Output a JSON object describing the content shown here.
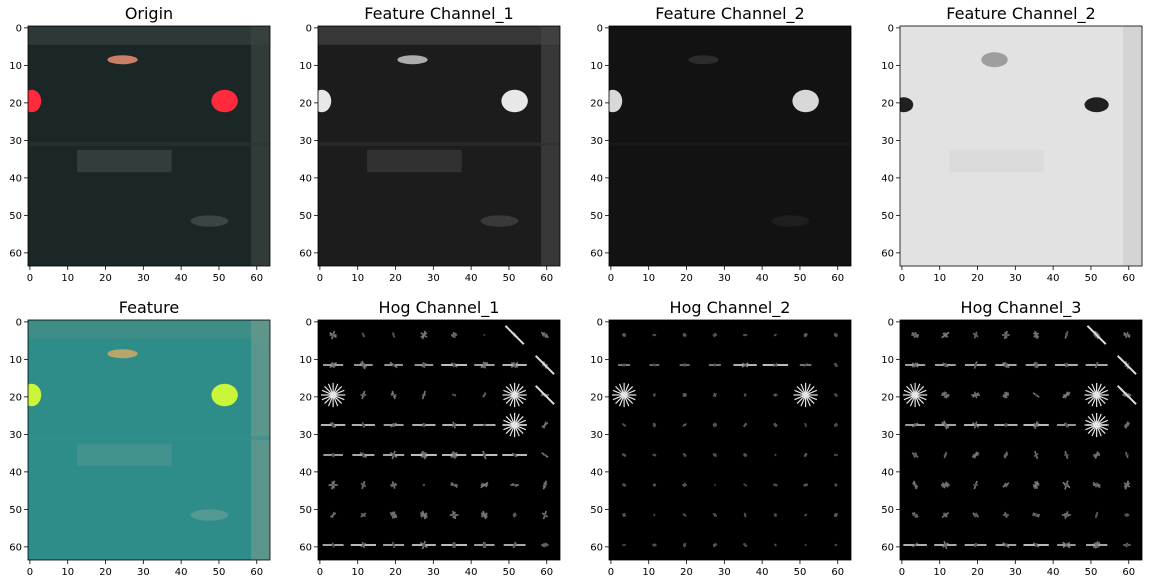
{
  "figure": {
    "background": "#ffffff"
  },
  "chart_data": [
    {
      "type": "heatmap",
      "title": "Origin",
      "xticks": [
        "0",
        "10",
        "20",
        "30",
        "40",
        "50",
        "60"
      ],
      "yticks": [
        "0",
        "10",
        "20",
        "30",
        "40",
        "50",
        "60"
      ],
      "xlim": [
        0,
        63
      ],
      "ylim": [
        63,
        0
      ],
      "colormap": "rgb-image",
      "base_color": "#1c2a2a",
      "content": "rear view of a dark car with red tail lights and license plate"
    },
    {
      "type": "heatmap",
      "title": "Feature Channel_1",
      "xticks": [
        "0",
        "10",
        "20",
        "30",
        "40",
        "50",
        "60"
      ],
      "yticks": [
        "0",
        "10",
        "20",
        "30",
        "40",
        "50",
        "60"
      ],
      "xlim": [
        0,
        63
      ],
      "ylim": [
        63,
        0
      ],
      "colormap": "gray",
      "base_color": "#1e1e1e"
    },
    {
      "type": "heatmap",
      "title": "Feature Channel_2",
      "xticks": [
        "0",
        "10",
        "20",
        "30",
        "40",
        "50",
        "60"
      ],
      "yticks": [
        "0",
        "10",
        "20",
        "30",
        "40",
        "50",
        "60"
      ],
      "xlim": [
        0,
        63
      ],
      "ylim": [
        63,
        0
      ],
      "colormap": "gray",
      "base_color": "#141414"
    },
    {
      "type": "heatmap",
      "title": "Feature Channel_2",
      "xticks": [
        "0",
        "10",
        "20",
        "30",
        "40",
        "50",
        "60"
      ],
      "yticks": [
        "0",
        "10",
        "20",
        "30",
        "40",
        "50",
        "60"
      ],
      "xlim": [
        0,
        63
      ],
      "ylim": [
        63,
        0
      ],
      "colormap": "gray",
      "base_color": "#e4e4e4"
    },
    {
      "type": "heatmap",
      "title": "Feature",
      "xticks": [
        "0",
        "10",
        "20",
        "30",
        "40",
        "50",
        "60"
      ],
      "yticks": [
        "0",
        "10",
        "20",
        "30",
        "40",
        "50",
        "60"
      ],
      "xlim": [
        0,
        63
      ],
      "ylim": [
        63,
        0
      ],
      "colormap": "rgb-image",
      "base_color": "#2f8e8a"
    },
    {
      "type": "heatmap",
      "title": "Hog Channel_1",
      "xticks": [
        "0",
        "10",
        "20",
        "30",
        "40",
        "50",
        "60"
      ],
      "yticks": [
        "0",
        "10",
        "20",
        "30",
        "40",
        "50",
        "60"
      ],
      "xlim": [
        0,
        63
      ],
      "ylim": [
        63,
        0
      ],
      "colormap": "gray",
      "base_color": "#000000",
      "cells_per_axis": 8
    },
    {
      "type": "heatmap",
      "title": "Hog Channel_2",
      "xticks": [
        "0",
        "10",
        "20",
        "30",
        "40",
        "50",
        "60"
      ],
      "yticks": [
        "0",
        "10",
        "20",
        "30",
        "40",
        "50",
        "60"
      ],
      "xlim": [
        0,
        63
      ],
      "ylim": [
        63,
        0
      ],
      "colormap": "gray",
      "base_color": "#000000",
      "cells_per_axis": 8
    },
    {
      "type": "heatmap",
      "title": "Hog Channel_3",
      "xticks": [
        "0",
        "10",
        "20",
        "30",
        "40",
        "50",
        "60"
      ],
      "yticks": [
        "0",
        "10",
        "20",
        "30",
        "40",
        "50",
        "60"
      ],
      "xlim": [
        0,
        63
      ],
      "ylim": [
        63,
        0
      ],
      "colormap": "gray",
      "base_color": "#000000",
      "cells_per_axis": 8
    }
  ]
}
